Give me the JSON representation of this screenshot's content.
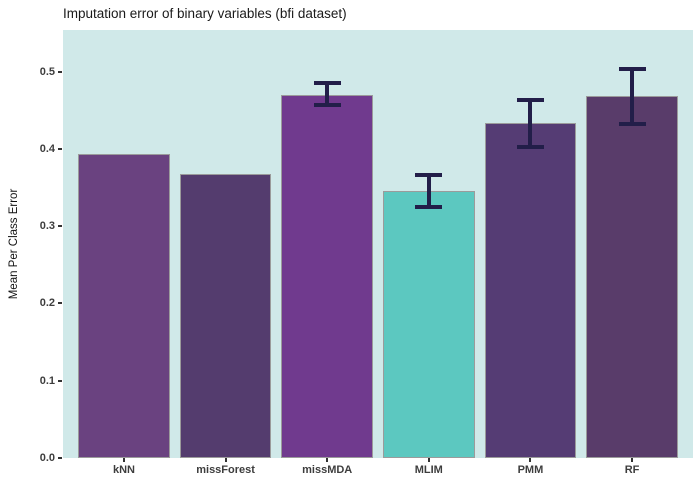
{
  "chart_data": {
    "type": "bar",
    "title": "Imputation error of binary variables (bfi dataset)",
    "xlabel": "",
    "ylabel": "Mean Per Class Error",
    "categories": [
      "kNN",
      "missForest",
      "missMDA",
      "MLIM",
      "PMM",
      "RF"
    ],
    "values": [
      0.394,
      0.368,
      0.47,
      0.345,
      0.433,
      0.469
    ],
    "error_bars": [
      null,
      null,
      {
        "low": 0.457,
        "high": 0.486
      },
      {
        "low": 0.325,
        "high": 0.366
      },
      {
        "low": 0.403,
        "high": 0.464
      },
      {
        "low": 0.432,
        "high": 0.504
      }
    ],
    "bar_colors": [
      "#6a4280",
      "#543c6e",
      "#703a8e",
      "#5cc8c0",
      "#553c74",
      "#593c6a"
    ],
    "bar_border_color": "#9b9b9b",
    "error_bar_color": "#221e49",
    "y_ticks": [
      0.0,
      0.1,
      0.2,
      0.3,
      0.4,
      0.5
    ],
    "y_tick_labels": [
      "0.0",
      "0.1",
      "0.2",
      "0.3",
      "0.4",
      "0.5"
    ],
    "ylim": [
      0,
      0.554
    ],
    "grid": false,
    "legend": false,
    "panel_background": "#d0e9e9",
    "page_background": "#ffffff"
  }
}
